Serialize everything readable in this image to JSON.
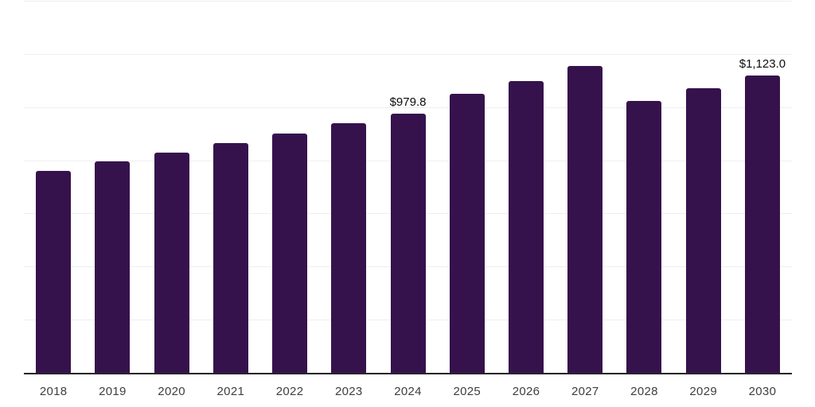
{
  "chart_data": {
    "type": "bar",
    "title": "",
    "xlabel": "",
    "ylabel": "",
    "categories": [
      "2018",
      "2019",
      "2020",
      "2021",
      "2022",
      "2023",
      "2024",
      "2025",
      "2026",
      "2027",
      "2028",
      "2029",
      "2030"
    ],
    "values": [
      762.8,
      797.8,
      830.9,
      866.6,
      903.4,
      941.4,
      979.8,
      1052.1,
      1099.9,
      1156.8,
      1025.2,
      1073.9,
      1123.0
    ],
    "data_labels": [
      "",
      "",
      "",
      "",
      "",
      "",
      "$979.8",
      "",
      "",
      "",
      "",
      "",
      "$1,123.0"
    ],
    "ylim": [
      0,
      1400
    ],
    "gridline_step": 200,
    "grid": "horizontal",
    "legend": "none",
    "y_axis_tick_labels_visible": false,
    "colors": {
      "background": "#ffffff",
      "bar": "#36124d",
      "gridline": "#efefef",
      "axis_line": "#262626",
      "tick_label": "#3e3e3e",
      "data_label": "#0d0d0d"
    }
  }
}
